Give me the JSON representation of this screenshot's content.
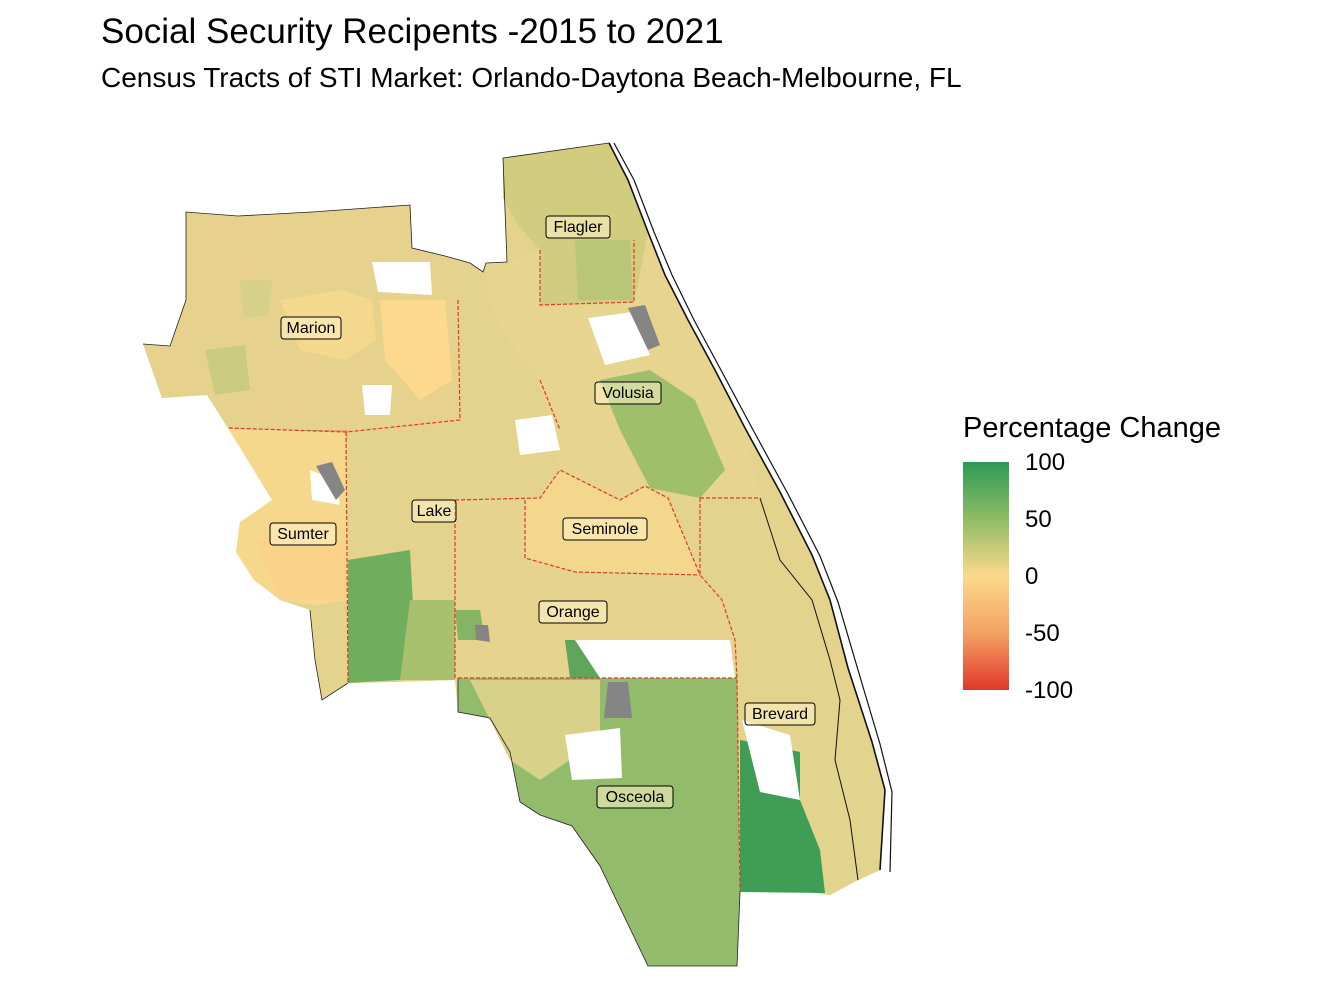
{
  "title": "Social Security Recipents -2015 to 2021",
  "subtitle": "Census Tracts of STI Market: Orlando-Daytona Beach-Melbourne, FL",
  "legend": {
    "title": "Percentage Change",
    "ticks": [
      "100",
      "50",
      "0",
      "-50",
      "-100"
    ],
    "colors": {
      "high": "#2e9a55",
      "mid_high": "#8fbc66",
      "mid": "#fcd98c",
      "mid_low": "#f3a263",
      "low": "#e0382b",
      "no_data": "#858585"
    }
  },
  "counties": [
    {
      "name": "Flagler"
    },
    {
      "name": "Marion"
    },
    {
      "name": "Volusia"
    },
    {
      "name": "Lake"
    },
    {
      "name": "Seminole"
    },
    {
      "name": "Sumter"
    },
    {
      "name": "Orange"
    },
    {
      "name": "Brevard"
    },
    {
      "name": "Osceola"
    }
  ]
}
